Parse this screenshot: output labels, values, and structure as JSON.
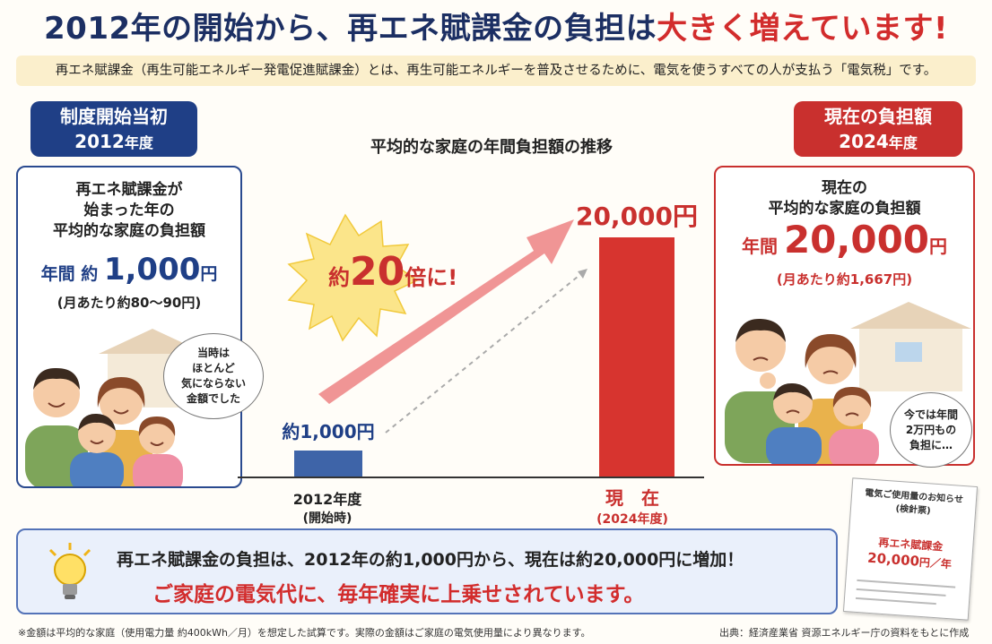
{
  "headline": {
    "part1": "2012年の開始から、再エネ賦課金の負担は",
    "part2": "大きく増えています!"
  },
  "definition": "再エネ賦課金（再生可能エネルギー発電促進賦課金）とは、再生可能エネルギーを普及させるために、電気を使うすべての人が支払う「電気税」です。",
  "left_panel": {
    "header_line1": "制度開始当初",
    "header_year": "2012",
    "header_year_suffix": "年度",
    "desc_line1": "再エネ賦課金が",
    "desc_line2": "始まった年の",
    "desc_line3": "平均的な家庭の負担額",
    "amount_prefix": "年間 約",
    "amount_value": "1,000",
    "amount_unit": "円",
    "monthly": "(月あたり約80～90円)",
    "bubble_line1": "当時は",
    "bubble_line2": "ほとんど",
    "bubble_line3": "気にならない",
    "bubble_line4": "金額でした"
  },
  "right_panel": {
    "header_line1": "現在の負担額",
    "header_year": "2024",
    "header_year_suffix": "年度",
    "desc_line1": "現在の",
    "desc_line2": "平均的な家庭の負担額",
    "amount_prefix": "年間",
    "amount_value": "20,000",
    "amount_unit": "円",
    "monthly": "(月あたり約1,667円)",
    "bubble_line1": "今では年間",
    "bubble_line2": "2万円もの",
    "bubble_line3": "負担に…"
  },
  "chart_title": "平均的な家庭の年間負担額の推移",
  "chart_data": {
    "type": "bar",
    "categories": [
      "2012年度",
      "現　在"
    ],
    "category_sublabels": [
      "(開始時)",
      "(2024年度)"
    ],
    "values": [
      1000,
      20000
    ],
    "value_labels": [
      "約1,000円",
      "20,000円"
    ],
    "colors": [
      "#3e64a8",
      "#d7342f"
    ],
    "annotation": "約20倍に!",
    "unit": "円"
  },
  "burst": {
    "prefix": "約",
    "number": "20",
    "suffix": "倍に!"
  },
  "summary": {
    "line1": "再エネ賦課金の負担は、2012年の約1,000円から、現在は約20,000円に増加！",
    "line2": "ご家庭の電気代に、毎年確実に上乗せされています。"
  },
  "notice": {
    "title1": "電気ご使用量のお知らせ",
    "title2": "(検針票)",
    "item": "再エネ賦課金",
    "amount": "20,000",
    "unit": "円／年"
  },
  "footnote": "※金額は平均的な家庭（使用電力量 約400kWh／月）を想定した試算です。実際の金額はご家庭の電気使用量により異なります。",
  "source": "出典：経済産業省 資源エネルギー庁の資料をもとに作成"
}
